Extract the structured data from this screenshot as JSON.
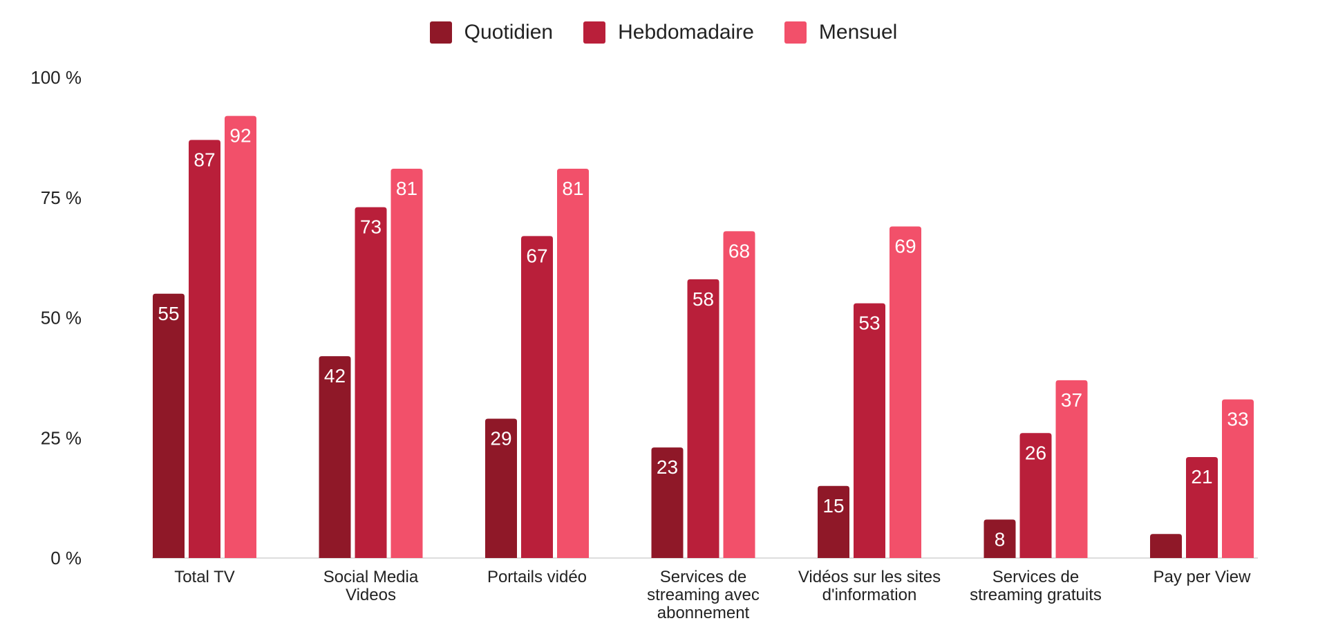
{
  "chart_data": {
    "type": "bar",
    "categories": [
      [
        "Total TV"
      ],
      [
        "Social Media",
        "Videos"
      ],
      [
        "Portails vidéo"
      ],
      [
        "Services de",
        "streaming avec",
        "abonnement"
      ],
      [
        "Vidéos sur les sites",
        "d'information"
      ],
      [
        "Services de",
        "streaming gratuits"
      ],
      [
        "Pay per View"
      ]
    ],
    "series": [
      {
        "name": "Quotidien",
        "color": "#8f1828",
        "values": [
          55,
          42,
          29,
          23,
          15,
          8,
          5
        ],
        "labels": [
          "55",
          "42",
          "29",
          "23",
          "15",
          "8",
          ""
        ]
      },
      {
        "name": "Hebdomadaire",
        "color": "#b91f3a",
        "values": [
          87,
          73,
          67,
          58,
          53,
          26,
          21
        ],
        "labels": [
          "87",
          "73",
          "67",
          "58",
          "53",
          "26",
          "21"
        ]
      },
      {
        "name": "Mensuel",
        "color": "#f2506a",
        "values": [
          92,
          81,
          81,
          68,
          69,
          37,
          33
        ],
        "labels": [
          "92",
          "81",
          "81",
          "68",
          "69",
          "37",
          "33"
        ]
      }
    ],
    "yticks": [
      {
        "value": 0,
        "label": "0 %"
      },
      {
        "value": 25,
        "label": "25 %"
      },
      {
        "value": 50,
        "label": "50 %"
      },
      {
        "value": 75,
        "label": "75 %"
      },
      {
        "value": 100,
        "label": "100 %"
      }
    ],
    "ylim": [
      0,
      100
    ],
    "grid": false,
    "legend_position": "top-center"
  }
}
